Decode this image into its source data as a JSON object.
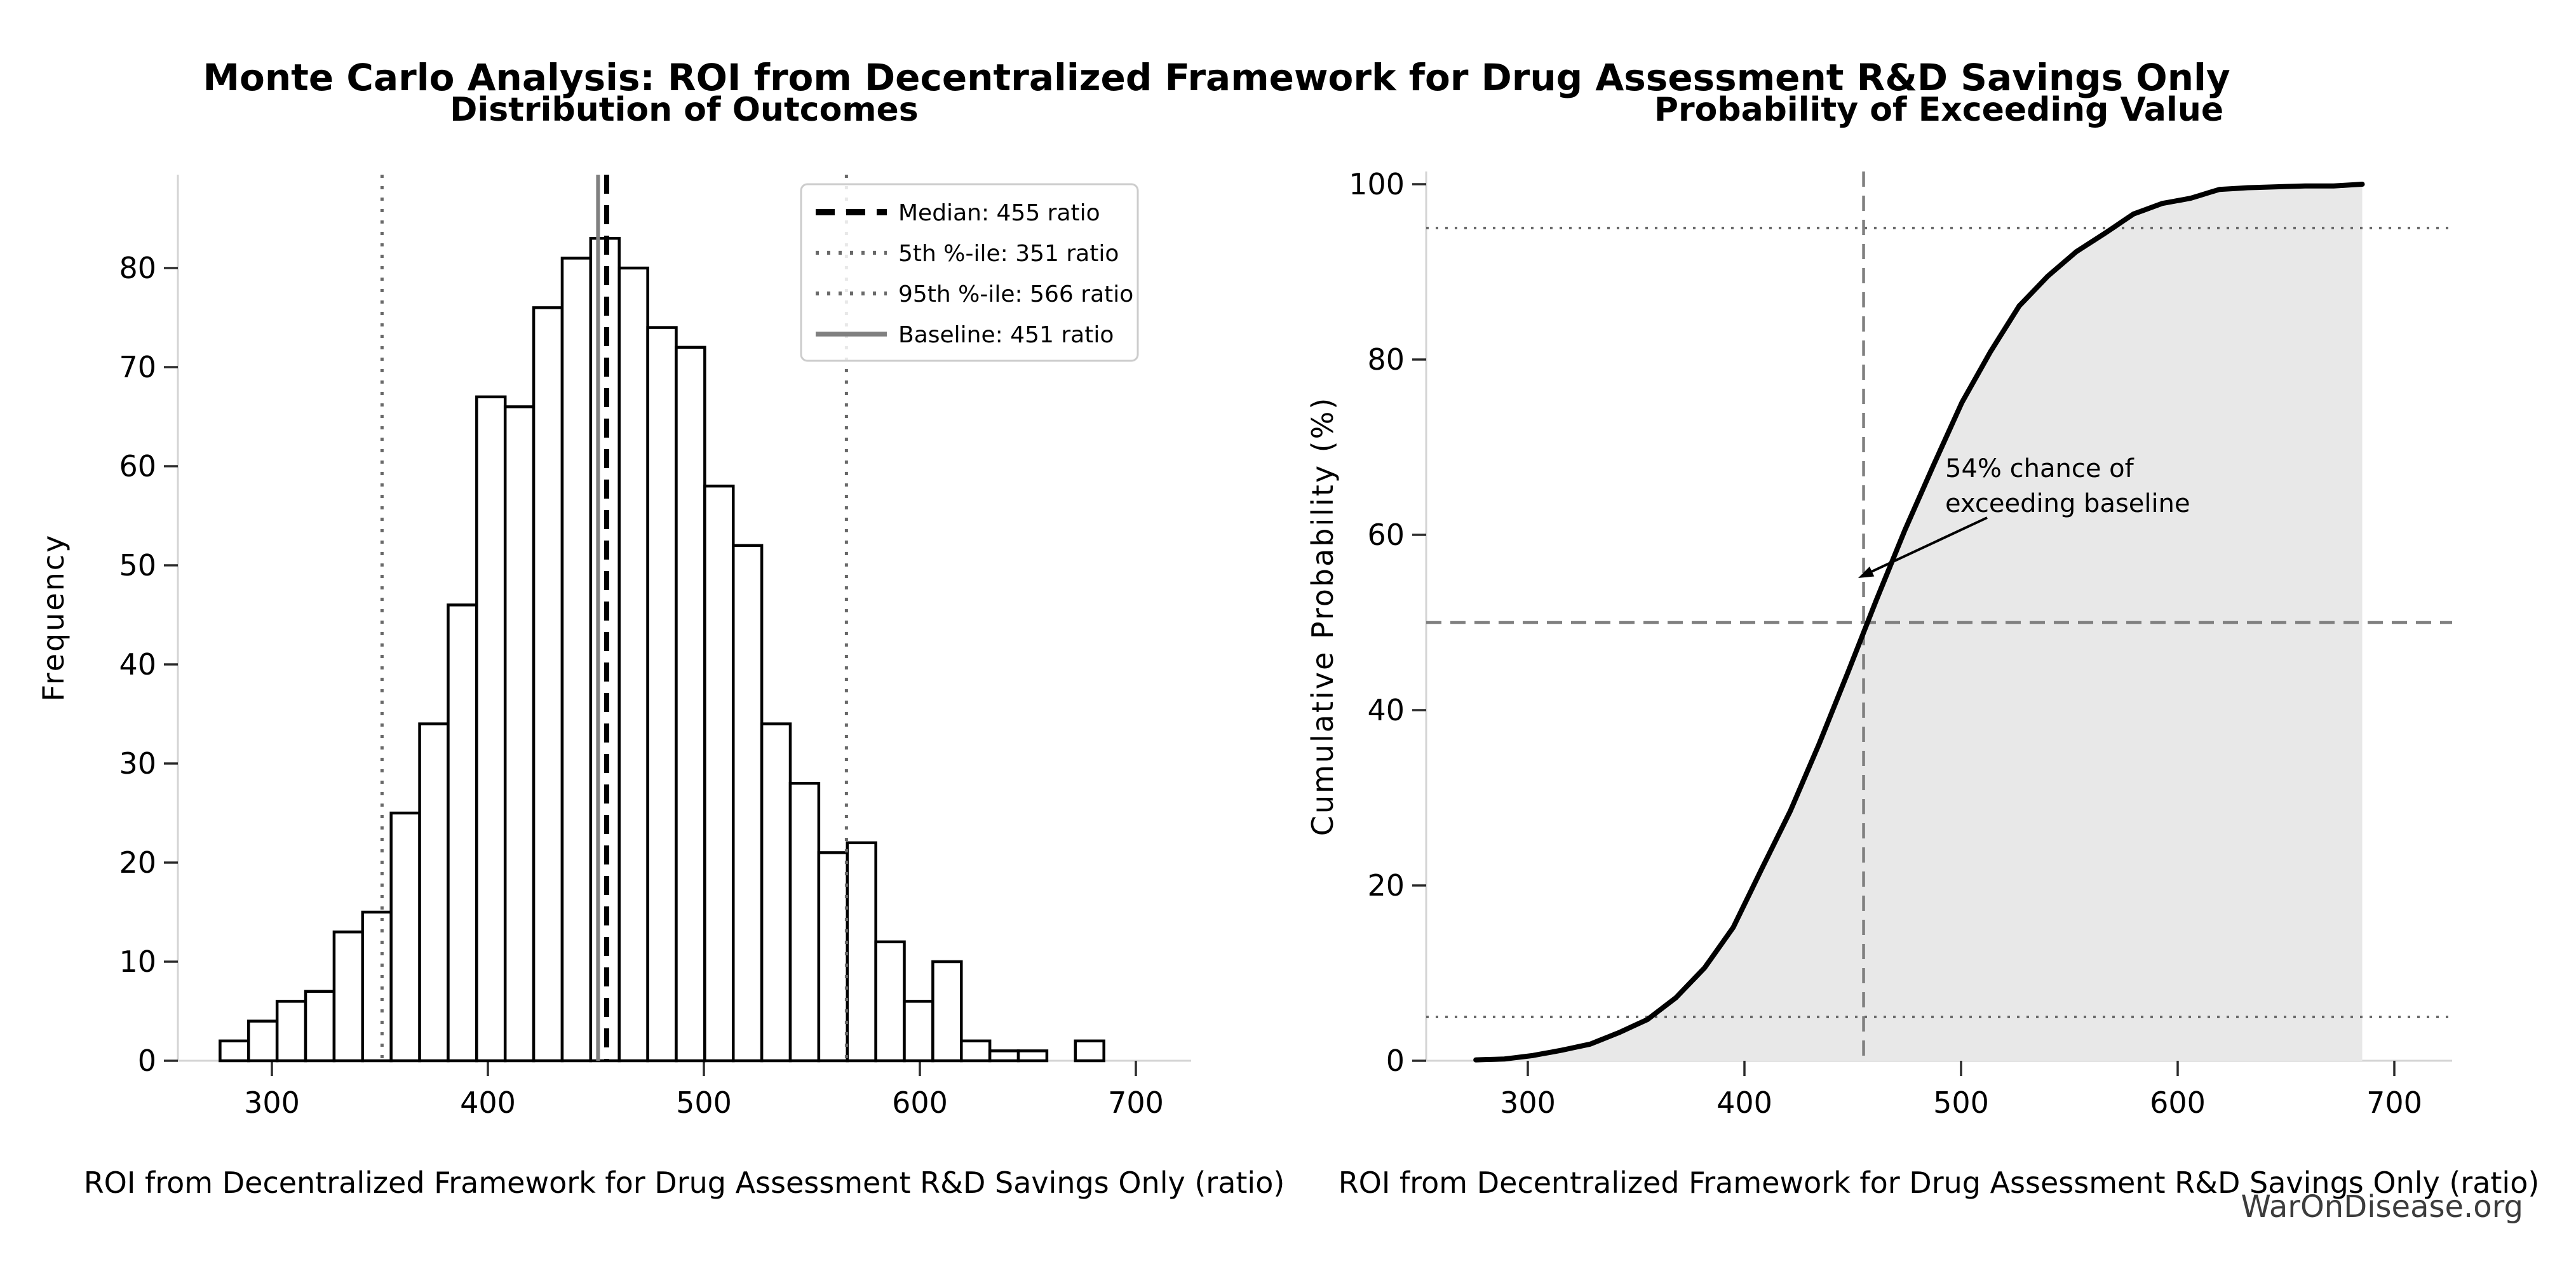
{
  "page": {
    "suptitle": "Monte Carlo Analysis: ROI from Decentralized Framework for Drug Assessment R&D Savings Only",
    "watermark": "WarOnDisease.org"
  },
  "chart_data": [
    {
      "type": "bar",
      "title": "Distribution of Outcomes",
      "xlabel": "ROI from Decentralized Framework for Drug Assessment R&D Savings Only (ratio)",
      "ylabel": "Frequency",
      "xlim": [
        252,
        726
      ],
      "ylim": [
        0,
        89
      ],
      "xticks": [
        300,
        400,
        500,
        600,
        700
      ],
      "yticks": [
        0,
        10,
        20,
        30,
        40,
        50,
        60,
        70,
        80
      ],
      "grid": false,
      "legend_position": "upper right",
      "histogram": {
        "bin_start": 276,
        "bin_width": 13.2,
        "counts": [
          2,
          4,
          6,
          7,
          13,
          15,
          25,
          34,
          46,
          67,
          66,
          76,
          81,
          83,
          80,
          74,
          72,
          58,
          52,
          34,
          28,
          21,
          22,
          12,
          6,
          10,
          2,
          1,
          1,
          0,
          2
        ],
        "total_samples": 1000,
        "bar_fill": "#ffffff",
        "bar_edge": "#000000"
      },
      "vlines": [
        {
          "x": 455,
          "label": "Median: 455 ratio",
          "style": "dashed",
          "color": "#000000",
          "width": 8
        },
        {
          "x": 351,
          "label": "5th %-ile: 351 ratio",
          "style": "dotted",
          "color": "#696969",
          "width": 5
        },
        {
          "x": 566,
          "label": "95th %-ile: 566 ratio",
          "style": "dotted",
          "color": "#696969",
          "width": 5
        },
        {
          "x": 451,
          "label": "Baseline: 451 ratio",
          "style": "solid",
          "color": "#808080",
          "width": 6
        }
      ]
    },
    {
      "type": "line",
      "title": "Probability of Exceeding Value",
      "xlabel": "ROI from Decentralized Framework for Drug Assessment R&D Savings Only (ratio)",
      "ylabel": "Cumulative Probability (%)",
      "xlim": [
        252,
        726
      ],
      "ylim": [
        0,
        100
      ],
      "xticks": [
        300,
        400,
        500,
        600,
        700
      ],
      "yticks": [
        0,
        20,
        40,
        60,
        80,
        100
      ],
      "line_color": "#000000",
      "fill_color": "#e8e8e8",
      "cdf": {
        "x": [
          276,
          289.2,
          302.4,
          315.6,
          328.8,
          342,
          355.2,
          368.4,
          381.6,
          394.8,
          408,
          421.2,
          434.4,
          447.6,
          460.8,
          474,
          487.2,
          500.4,
          513.6,
          526.8,
          540,
          553.2,
          566.4,
          579.6,
          592.8,
          606,
          619.2,
          632.4,
          645.6,
          658.8,
          672,
          685.2
        ],
        "p": [
          0.1,
          0.2,
          0.6,
          1.2,
          1.9,
          3.2,
          4.7,
          7.2,
          10.6,
          15.2,
          21.9,
          28.5,
          36.1,
          44.2,
          52.5,
          60.5,
          67.9,
          75.1,
          80.9,
          86.1,
          89.5,
          92.3,
          94.4,
          96.6,
          97.8,
          98.4,
          99.4,
          99.6,
          99.7,
          99.8,
          99.8,
          100
        ]
      },
      "hlines": [
        {
          "y": 5,
          "style": "dotted",
          "color": "#696969",
          "width": 4
        },
        {
          "y": 50,
          "style": "dashed",
          "color": "#808080",
          "width": 4.5
        },
        {
          "y": 95,
          "style": "dotted",
          "color": "#696969",
          "width": 4
        }
      ],
      "vlines": [
        {
          "x": 455,
          "style": "dashed",
          "color": "#808080",
          "width": 4.5
        }
      ],
      "annotation": {
        "line1": "54% chance of",
        "line2": "exceeding baseline",
        "points_at_x": 452,
        "points_at_y": 54
      }
    }
  ]
}
